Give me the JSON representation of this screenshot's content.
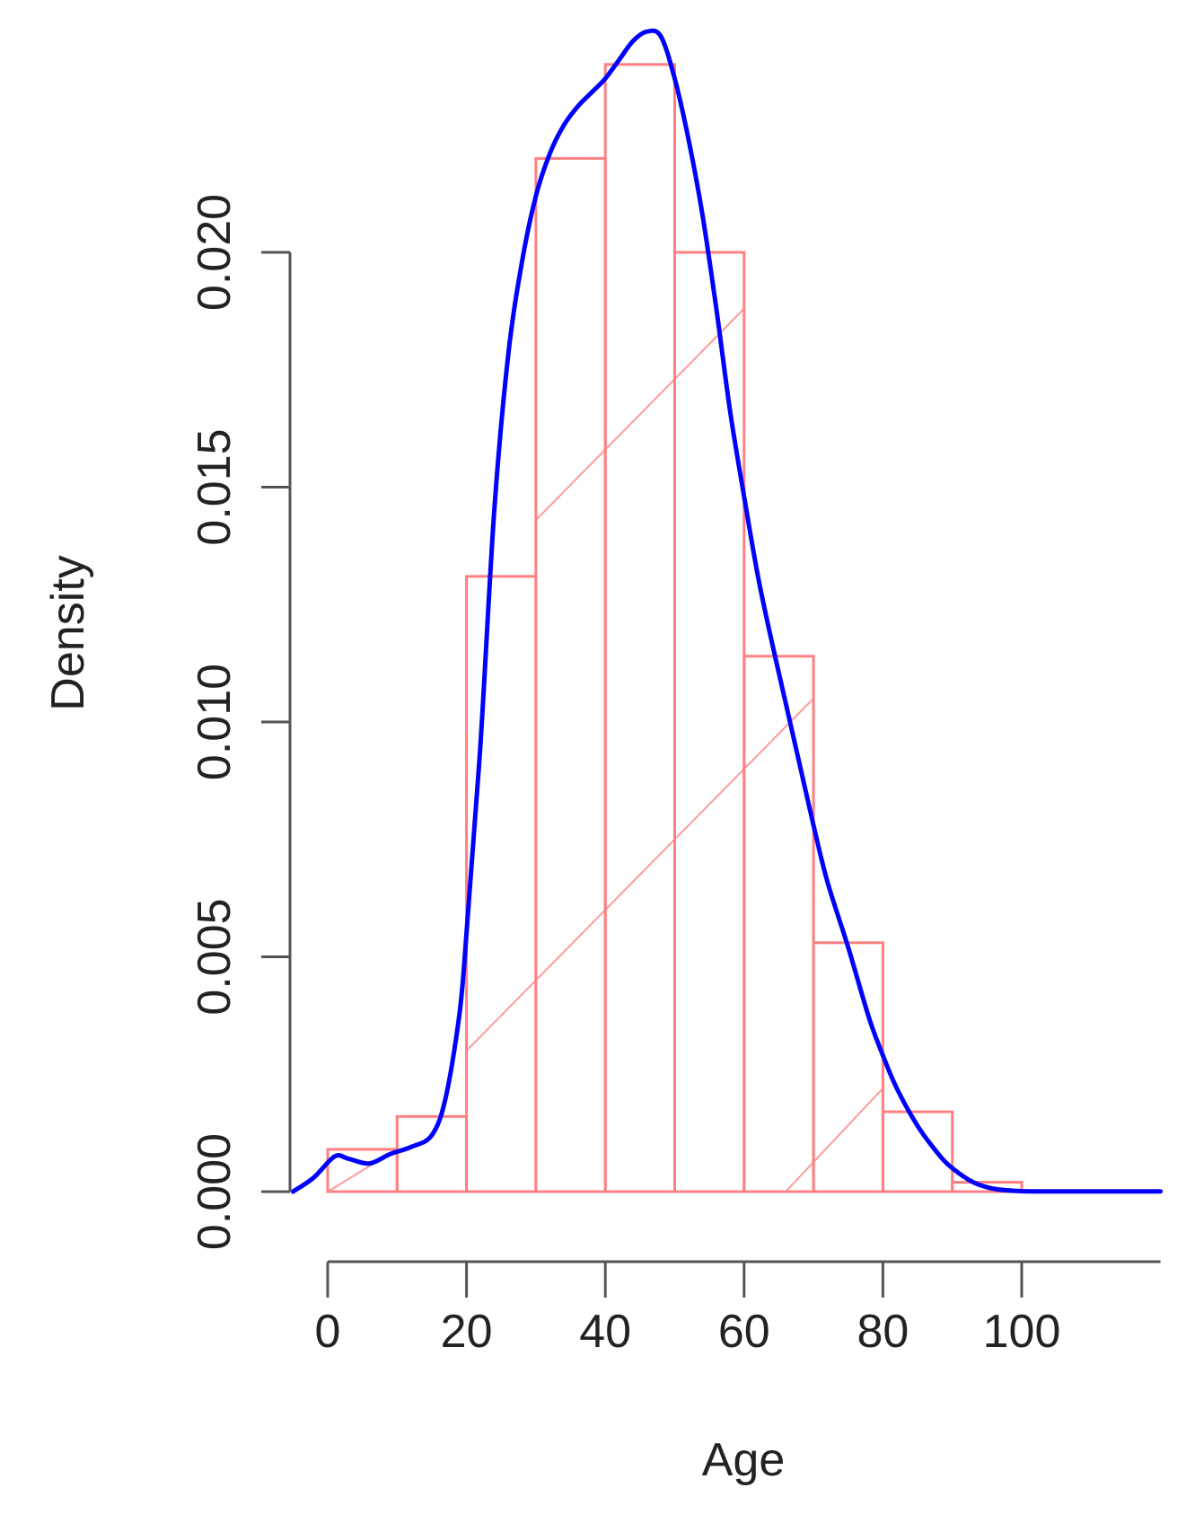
{
  "chart_data": {
    "type": "bar",
    "title": "",
    "xlabel": "Age",
    "ylabel": "Density",
    "xlim": [
      -5,
      120
    ],
    "ylim": [
      0,
      0.0245
    ],
    "x_ticks": [
      0,
      20,
      40,
      60,
      80,
      100
    ],
    "x_tick_labels": [
      "0",
      "20",
      "40",
      "60",
      "80",
      "100"
    ],
    "y_ticks": [
      0,
      0.005,
      0.01,
      0.015,
      0.02
    ],
    "y_tick_labels": [
      "0.000",
      "0.005",
      "0.010",
      "0.015",
      "0.020"
    ],
    "grid": false,
    "histogram": {
      "bin_edges": [
        0,
        10,
        20,
        30,
        40,
        50,
        60,
        70,
        80,
        90,
        100
      ],
      "density": [
        0.0009,
        0.0016,
        0.0131,
        0.022,
        0.024,
        0.02,
        0.0114,
        0.0053,
        0.0017,
        0.0002
      ],
      "color": "#ff8080"
    },
    "density_curve": {
      "color": "#0000ff",
      "x": [
        -5,
        -2,
        1,
        3,
        6,
        9,
        12,
        15,
        17,
        19,
        20,
        22,
        24,
        26,
        28,
        30,
        32,
        34,
        36,
        38,
        40,
        42,
        44,
        46,
        48,
        50,
        52,
        54,
        56,
        58,
        60,
        62,
        64,
        66,
        68,
        70,
        72,
        75,
        78,
        80,
        82,
        85,
        88,
        90,
        93,
        96,
        100,
        105,
        110,
        115,
        120
      ],
      "y": [
        0,
        0.0003,
        0.00075,
        0.0007,
        0.0006,
        0.0008,
        0.00095,
        0.0012,
        0.002,
        0.0038,
        0.0055,
        0.0095,
        0.0145,
        0.0178,
        0.0198,
        0.0212,
        0.0221,
        0.0227,
        0.0231,
        0.0234,
        0.0237,
        0.0241,
        0.0245,
        0.0247,
        0.0246,
        0.0237,
        0.0224,
        0.0208,
        0.0188,
        0.0166,
        0.0148,
        0.0131,
        0.0117,
        0.0104,
        0.0091,
        0.0078,
        0.0066,
        0.0052,
        0.0037,
        0.0029,
        0.0022,
        0.0014,
        0.0008,
        0.0005,
        0.0002,
        6e-05,
        1e-05,
        5e-06,
        5e-06,
        5e-06,
        5e-06
      ]
    }
  }
}
